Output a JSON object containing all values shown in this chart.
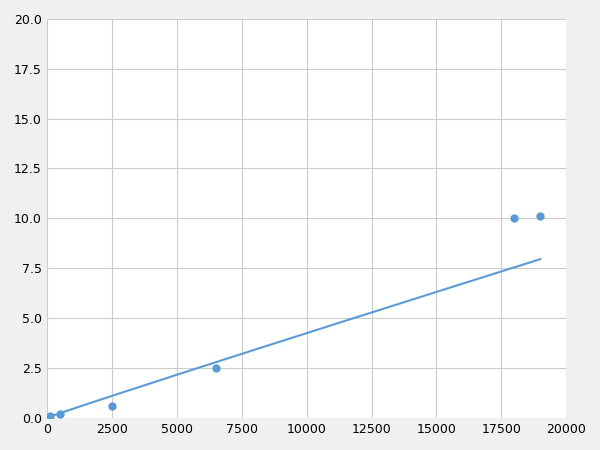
{
  "x": [
    100,
    500,
    2500,
    6500,
    18000,
    19000
  ],
  "y": [
    0.07,
    0.18,
    0.6,
    2.5,
    10.0,
    10.1
  ],
  "line_color": "#5b9bd5",
  "marker_color": "#5b9bd5",
  "marker_size": 6,
  "xlim": [
    0,
    20000
  ],
  "ylim": [
    0,
    20.0
  ],
  "xticks": [
    0,
    2500,
    5000,
    7500,
    10000,
    12500,
    15000,
    17500,
    20000
  ],
  "yticks": [
    0.0,
    2.5,
    5.0,
    7.5,
    10.0,
    12.5,
    15.0,
    17.5,
    20.0
  ],
  "xtick_labels": [
    "0",
    "2500",
    "5000",
    "7500",
    "10000",
    "12500",
    "15000",
    "17500",
    "20000"
  ],
  "ytick_labels": [
    "0.0",
    "2.5",
    "5.0",
    "7.5",
    "10.0",
    "12.5",
    "15.0",
    "17.5",
    "20.0"
  ],
  "grid_color": "#cccccc",
  "background_color": "#ffffff",
  "figure_background": "#f0f0f0",
  "tick_fontsize": 9
}
